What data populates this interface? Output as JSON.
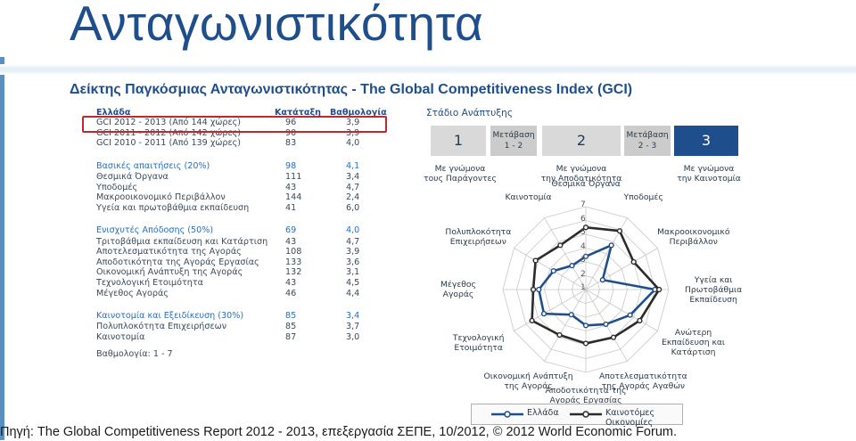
{
  "title": "Ανταγωνιστικότητα",
  "subtitle": "Δείκτης Παγκόσμιας Ανταγωνιστικότητας - The Global Competitiveness Index (GCI)",
  "table": {
    "header": {
      "name": "Ελλάδα",
      "rank": "Κατάταξη",
      "score": "Βαθμολογία"
    },
    "gci_rows": [
      {
        "name": "GCI 2012 - 2013 (Από 144 χώρες)",
        "rank": "96",
        "score": "3,9"
      },
      {
        "name": "GCI 2011 - 2012 (Από 142 χώρες)",
        "rank": "90",
        "score": "3,9"
      },
      {
        "name": "GCI 2010 - 2011 (Από 139 χώρες)",
        "rank": "83",
        "score": "4,0"
      }
    ],
    "sections": [
      {
        "title": {
          "name": "Βασικές απαιτήσεις (20%)",
          "rank": "98",
          "score": "4,1"
        },
        "rows": [
          {
            "name": "Θεσμικά Όργανα",
            "rank": "111",
            "score": "3,4"
          },
          {
            "name": "Υποδομές",
            "rank": "43",
            "score": "4,7"
          },
          {
            "name": "Μακροοικονομικό Περιβάλλον",
            "rank": "144",
            "score": "2,4"
          },
          {
            "name": "Υγεία και πρωτοβάθμια εκπαίδευση",
            "rank": "41",
            "score": "6,0"
          }
        ]
      },
      {
        "title": {
          "name": "Ενισχυτές Απόδοσης (50%)",
          "rank": "69",
          "score": "4,0"
        },
        "rows": [
          {
            "name": "Τριτοβάθμια εκπαίδευση και Κατάρτιση",
            "rank": "43",
            "score": "4,7"
          },
          {
            "name": "Αποτελεσματικότητα της Αγοράς",
            "rank": "108",
            "score": "3,9"
          },
          {
            "name": "Αποδοτικότητα της Αγοράς Εργασίας",
            "rank": "133",
            "score": "3,6"
          },
          {
            "name": "Οικονομική Ανάπτυξη της Αγοράς",
            "rank": "132",
            "score": "3,1"
          },
          {
            "name": "Τεχνολογική Ετοιμότητα",
            "rank": "43",
            "score": "4,5"
          },
          {
            "name": "Μέγεθος Αγοράς",
            "rank": "46",
            "score": "4,4"
          }
        ]
      },
      {
        "title": {
          "name": "Καινοτομία και Εξειδίκευση (30%)",
          "rank": "85",
          "score": "3,4"
        },
        "rows": [
          {
            "name": "Πολυπλοκότητα Επιχειρήσεων",
            "rank": "85",
            "score": "3,7"
          },
          {
            "name": "Καινοτομία",
            "rank": "87",
            "score": "3,0"
          }
        ]
      }
    ],
    "scale_note": "Βαθμολογία: 1 - 7"
  },
  "stages": {
    "title": "Στάδιο Ανάπτυξης",
    "boxes": [
      "1",
      "Μετάβαση 1 - 2",
      "2",
      "Μετάβαση 2 - 3",
      "3"
    ],
    "descriptions": [
      [
        "Με γνώμονα",
        "τους Παράγοντες"
      ],
      [
        "Με γνώμονα",
        "την Αποδοτικότητα"
      ],
      [
        "Με γνώμονα",
        "την Καινοτομία"
      ]
    ]
  },
  "source": "Πηγή: The Global Competitiveness Report 2012 - 2013, επεξεργασία ΣΕΠΕ, 10/2012, © 2012 World Economic Forum.",
  "chart_data": {
    "type": "radar",
    "axes": [
      [
        "Θεσμικά Όργανα"
      ],
      [
        "Υποδομές"
      ],
      [
        "Μακροοικονομικό",
        "Περιβάλλον"
      ],
      [
        "Υγεία και",
        "Πρωτοβάθμια",
        "Εκπαίδευση"
      ],
      [
        "Ανώτερη",
        "Εκπαίδευση και",
        "Κατάρτιση"
      ],
      [
        "Αποτελεσματικότητα",
        "της Αγοράς Αγαθών"
      ],
      [
        "Αποδοτικότητα της",
        "Αγοράς Εργασίας"
      ],
      [
        "Οικονομική Ανάπτυξη",
        "της Αγοράς"
      ],
      [
        "Τεχνολογική",
        "Ετοιμότητα"
      ],
      [
        "Μέγεθος",
        "Αγοράς"
      ],
      [
        "Πολυπλοκότητα",
        "Επιχειρήσεων"
      ],
      [
        "Καινοτομία"
      ]
    ],
    "ticks": [
      "1",
      "2",
      "3",
      "4",
      "5",
      "6",
      "7"
    ],
    "rmin": 1,
    "rmax": 7,
    "series": [
      {
        "name": "Ελλάδα",
        "color": "#1f4e8c",
        "values": [
          3.4,
          4.7,
          2.4,
          6.0,
          4.7,
          3.9,
          3.6,
          3.1,
          4.5,
          4.4,
          3.7,
          3.0
        ]
      },
      {
        "name": "Καινοτόμες Οικονομίες",
        "color": "#2b2b2b",
        "values": [
          5.5,
          5.9,
          5.0,
          6.3,
          5.5,
          5.0,
          4.9,
          4.8,
          5.5,
          4.8,
          5.2,
          4.7
        ]
      }
    ]
  }
}
